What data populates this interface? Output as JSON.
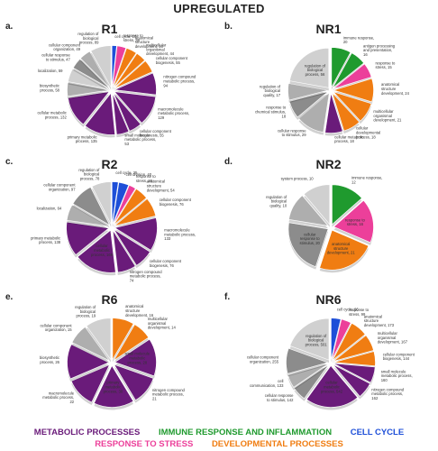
{
  "title": "UPREGULATED",
  "colors": {
    "metabolic": "#6a1b7a",
    "immune": "#1f9a2e",
    "cell_cycle": "#1e4fd8",
    "stress": "#ec3f9a",
    "developmental": "#f07d12",
    "gray1": "#d0d0d0",
    "gray2": "#aeaeae",
    "gray3": "#8c8c8c",
    "gray4": "#6e6e6e"
  },
  "legend": [
    {
      "label": "METABOLIC PROCESSES",
      "color": "#6a1b7a"
    },
    {
      "label": "IMMUNE RESPONSE AND INFLAMMATION",
      "color": "#1f9a2e"
    },
    {
      "label": "CELL CYCLE",
      "color": "#1e4fd8"
    },
    {
      "label": "RESPONSE TO STRESS",
      "color": "#ec3f9a"
    },
    {
      "label": "DEVELOPMENTAL PROCESSES",
      "color": "#f07d12"
    }
  ],
  "chart_data": [
    {
      "type": "pie",
      "letter": "a.",
      "title": "R1",
      "slices": [
        {
          "label": "cell cycle, 20",
          "value": 20,
          "color": "#1e4fd8"
        },
        {
          "label": "response to stress, 38",
          "value": 38,
          "color": "#ec3f9a"
        },
        {
          "label": "anatomical structure development, 46",
          "value": 46,
          "color": "#f07d12"
        },
        {
          "label": "multicellular organismal development, 44",
          "value": 44,
          "color": "#f07d12"
        },
        {
          "label": "cellular component biogenesis, 55",
          "value": 55,
          "color": "#f07d12"
        },
        {
          "label": "nitrogen compound metabolic process, 94",
          "value": 94,
          "color": "#6a1b7a"
        },
        {
          "label": "macromolecule metabolic process, 129",
          "value": 129,
          "color": "#6a1b7a"
        },
        {
          "label": "cellular component biogenesis, 55",
          "value": 55,
          "color": "#6a1b7a"
        },
        {
          "label": "small molecule metabolic process, 53",
          "value": 53,
          "color": "#6a1b7a"
        },
        {
          "label": "primary metabolic process, 135",
          "value": 135,
          "color": "#6a1b7a"
        },
        {
          "label": "cellular metabolic process, 132",
          "value": 132,
          "color": "#6a1b7a"
        },
        {
          "label": "biosynthetic process, 58",
          "value": 58,
          "color": "#aeaeae"
        },
        {
          "label": "localization, 59",
          "value": 59,
          "color": "#d0d0d0"
        },
        {
          "label": "cellular response to stimulus, 47",
          "value": 47,
          "color": "#8c8c8c"
        },
        {
          "label": "cellular component organization, 49",
          "value": 49,
          "color": "#aeaeae"
        },
        {
          "label": "regulation of biological process, 89",
          "value": 89,
          "color": "#d0d0d0"
        }
      ]
    },
    {
      "type": "pie",
      "letter": "b.",
      "title": "NR1",
      "slices": [
        {
          "label": "immune response, 20",
          "value": 20,
          "color": "#1f9a2e"
        },
        {
          "label": "antigen processing and presentation, 16",
          "value": 16,
          "color": "#1f9a2e"
        },
        {
          "label": "response to stress, 15",
          "value": 15,
          "color": "#ec3f9a"
        },
        {
          "label": "anatomical structure development, 24",
          "value": 24,
          "color": "#f07d12"
        },
        {
          "label": "multicellular organismal development, 21",
          "value": 21,
          "color": "#f07d12"
        },
        {
          "label": "cellular developmental process, 18",
          "value": 18,
          "color": "#f07d12"
        },
        {
          "label": "cellular metabolic process, 18",
          "value": 18,
          "color": "#6a1b7a"
        },
        {
          "label": "cellular response to stimulus, 29",
          "value": 29,
          "color": "#aeaeae"
        },
        {
          "label": "response to chemical stimulus, 18",
          "value": 18,
          "color": "#8c8c8c"
        },
        {
          "label": "regulation of biological quality, 17",
          "value": 17,
          "color": "#aeaeae"
        },
        {
          "label": "regulation of biological process, 56",
          "value": 56,
          "color": "#d0d0d0"
        }
      ]
    },
    {
      "type": "pie",
      "letter": "c.",
      "title": "R2",
      "slices": [
        {
          "label": "cell cycle, 25",
          "value": 25,
          "color": "#1e4fd8"
        },
        {
          "label": "cell division, 40",
          "value": 40,
          "color": "#1e4fd8"
        },
        {
          "label": "response to stress, 28",
          "value": 28,
          "color": "#ec3f9a"
        },
        {
          "label": "anatomical structure development, 54",
          "value": 54,
          "color": "#f07d12"
        },
        {
          "label": "cellular component biogenesis, 76",
          "value": 76,
          "color": "#f07d12"
        },
        {
          "label": "macromolecule metabolic process, 133",
          "value": 133,
          "color": "#6a1b7a"
        },
        {
          "label": "cellular component biogenesis, 76",
          "value": 76,
          "color": "#6a1b7a"
        },
        {
          "label": "nitrogen compound metabolic process, 74",
          "value": 74,
          "color": "#6a1b7a"
        },
        {
          "label": "cellular metabolic process, 169",
          "value": 169,
          "color": "#6a1b7a"
        },
        {
          "label": "primary metabolic process, 138",
          "value": 138,
          "color": "#6a1b7a"
        },
        {
          "label": "localization, 64",
          "value": 64,
          "color": "#aeaeae"
        },
        {
          "label": "cellular component organization, 97",
          "value": 97,
          "color": "#8c8c8c"
        },
        {
          "label": "regulation of biological process, 78",
          "value": 78,
          "color": "#d0d0d0"
        }
      ]
    },
    {
      "type": "pie",
      "letter": "d.",
      "title": "NR2",
      "slices": [
        {
          "label": "immune response, 12",
          "value": 12,
          "color": "#1f9a2e"
        },
        {
          "label": "response to stress, 16",
          "value": 16,
          "color": "#ec3f9a"
        },
        {
          "label": "anatomical structure development, 21",
          "value": 21,
          "color": "#f07d12"
        },
        {
          "label": "cellular response to stimulus, 20",
          "value": 20,
          "color": "#8c8c8c"
        },
        {
          "label": "regulation of biological quality, 10",
          "value": 10,
          "color": "#aeaeae"
        },
        {
          "label": "system process, 10",
          "value": 10,
          "color": "#d0d0d0"
        }
      ]
    },
    {
      "type": "pie",
      "letter": "e.",
      "title": "R6",
      "slices": [
        {
          "label": "anatomical structure development, 16",
          "value": 16,
          "color": "#f07d12"
        },
        {
          "label": "multicellular organismal development, 14",
          "value": 14,
          "color": "#f07d12"
        },
        {
          "label": "small molecule metabolic process, 28",
          "value": 28,
          "color": "#6a1b7a"
        },
        {
          "label": "nitrogen compound metabolic process, 21",
          "value": 21,
          "color": "#6a1b7a"
        },
        {
          "label": "primary metabolic process, 30",
          "value": 30,
          "color": "#6a1b7a"
        },
        {
          "label": "macromolecule metabolic process, 22",
          "value": 22,
          "color": "#6a1b7a"
        },
        {
          "label": "biosynthetic process, 26",
          "value": 26,
          "color": "#6a1b7a"
        },
        {
          "label": "cellular component organization, 15",
          "value": 15,
          "color": "#aeaeae"
        },
        {
          "label": "regulation of biological process, 19",
          "value": 19,
          "color": "#d0d0d0"
        }
      ]
    },
    {
      "type": "pie",
      "letter": "f.",
      "title": "NR6",
      "slices": [
        {
          "label": "cell cycle, 96",
          "value": 96,
          "color": "#1e4fd8"
        },
        {
          "label": "response to stress, 99",
          "value": 99,
          "color": "#ec3f9a"
        },
        {
          "label": "anatomical structure development, 173",
          "value": 173,
          "color": "#f07d12"
        },
        {
          "label": "multicellular organismal development, 167",
          "value": 167,
          "color": "#f07d12"
        },
        {
          "label": "cellular component biogenesis, 144",
          "value": 144,
          "color": "#f07d12"
        },
        {
          "label": "small molecule metabolic process, 160",
          "value": 160,
          "color": "#6a1b7a"
        },
        {
          "label": "nitrogen compound metabolic process, 162",
          "value": 162,
          "color": "#6a1b7a"
        },
        {
          "label": "cellular metabolic process, 542",
          "value": 542,
          "color": "#6a1b7a"
        },
        {
          "label": "cellular response to stimulus, 142",
          "value": 142,
          "color": "#8c8c8c"
        },
        {
          "label": "cell communication, 133",
          "value": 133,
          "color": "#aeaeae"
        },
        {
          "label": "cellular component organization, 255",
          "value": 255,
          "color": "#8c8c8c"
        },
        {
          "label": "regulation of biological process, 501",
          "value": 501,
          "color": "#d0d0d0"
        }
      ]
    }
  ]
}
